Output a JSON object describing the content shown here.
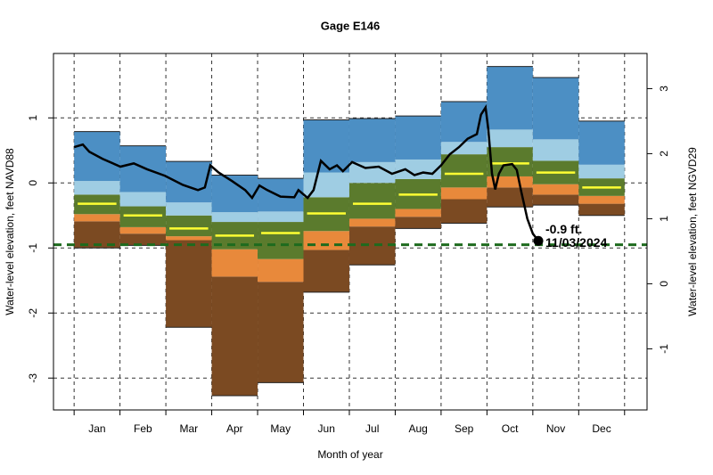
{
  "chart_data": {
    "type": "band",
    "title": "Gage E146",
    "xlabel": "Month of year",
    "ylabel": "Water-level elevation, feet NAVD88",
    "y2label": "Water-level elevation, feet NGVD29",
    "categories": [
      "Jan",
      "Feb",
      "Mar",
      "Apr",
      "May",
      "Jun",
      "Jul",
      "Aug",
      "Sep",
      "Oct",
      "Nov",
      "Dec"
    ],
    "xlim": [
      -0.45,
      12.49
    ],
    "xticks": [
      0,
      1,
      2,
      3,
      4,
      5,
      6,
      7,
      8,
      9,
      10,
      11,
      12
    ],
    "ylim": [
      -3.49,
      1.99
    ],
    "yticks": [
      -3,
      -2,
      -1,
      0,
      1
    ],
    "y2lim": [
      -1.94,
      3.54
    ],
    "y2ticks": [
      -1,
      0,
      1,
      2,
      3
    ],
    "grid": true,
    "levels": [
      [
        -1.0,
        -0.96,
        -2.22,
        -3.27,
        -3.07,
        -1.68,
        -1.26,
        -0.7,
        -0.62,
        -0.37,
        -0.34,
        -0.5
      ],
      [
        -0.59,
        -0.78,
        -0.88,
        -1.44,
        -1.52,
        -1.03,
        -0.67,
        -0.52,
        -0.25,
        -0.07,
        -0.18,
        -0.32
      ],
      [
        -0.48,
        -0.68,
        -0.82,
        -1.02,
        -1.17,
        -0.74,
        -0.55,
        -0.4,
        -0.07,
        0.1,
        -0.02,
        -0.2
      ],
      [
        -0.18,
        -0.36,
        -0.5,
        -0.6,
        -0.6,
        -0.22,
        0.0,
        0.06,
        0.44,
        0.55,
        0.34,
        0.07
      ],
      [
        0.03,
        -0.14,
        -0.3,
        -0.45,
        -0.44,
        0.16,
        0.32,
        0.36,
        0.63,
        0.82,
        0.67,
        0.28
      ],
      [
        0.79,
        0.57,
        0.33,
        0.12,
        0.07,
        0.97,
        0.99,
        1.03,
        1.25,
        1.79,
        1.62,
        0.95
      ]
    ],
    "band_colors": [
      "#7b4a22",
      "#e8893b",
      "#5b7b2d",
      "#9fcde3",
      "#4c8fc4"
    ],
    "median": {
      "color": "#ffff33",
      "values": [
        -0.32,
        -0.5,
        -0.7,
        -0.81,
        -0.77,
        -0.47,
        -0.32,
        -0.18,
        0.14,
        0.3,
        0.16,
        -0.07
      ]
    },
    "current": {
      "color": "#000000",
      "x": [
        0,
        0.19,
        0.33,
        0.62,
        1.01,
        1.3,
        1.59,
        1.98,
        2.37,
        2.7,
        2.85,
        2.97,
        3.15,
        3.44,
        3.73,
        3.88,
        4.04,
        4.21,
        4.5,
        4.8,
        4.89,
        5.09,
        5.22,
        5.38,
        5.57,
        5.73,
        5.86,
        6.06,
        6.35,
        6.64,
        6.93,
        7.22,
        7.42,
        7.61,
        7.81,
        8.0,
        8.19,
        8.39,
        8.58,
        8.78,
        8.87,
        8.97,
        9.03,
        9.11,
        9.18,
        9.26,
        9.36,
        9.55,
        9.65,
        9.75,
        9.88,
        10.0,
        10.12
      ],
      "values": [
        0.55,
        0.59,
        0.48,
        0.37,
        0.25,
        0.3,
        0.21,
        0.11,
        -0.03,
        -0.11,
        -0.07,
        0.27,
        0.16,
        0.03,
        -0.11,
        -0.23,
        -0.04,
        -0.11,
        -0.21,
        -0.22,
        -0.11,
        -0.23,
        -0.11,
        0.34,
        0.21,
        0.27,
        0.18,
        0.32,
        0.23,
        0.25,
        0.14,
        0.21,
        0.12,
        0.16,
        0.14,
        0.27,
        0.44,
        0.55,
        0.68,
        0.75,
        1.05,
        1.16,
        0.82,
        0.14,
        -0.1,
        0.14,
        0.27,
        0.29,
        0.2,
        -0.14,
        -0.55,
        -0.78,
        -0.89
      ]
    },
    "reference_line": {
      "value": -0.95,
      "color": "#1e6b1e"
    },
    "annotation": [
      "-0.9 ft.",
      "11/03/2024"
    ]
  }
}
